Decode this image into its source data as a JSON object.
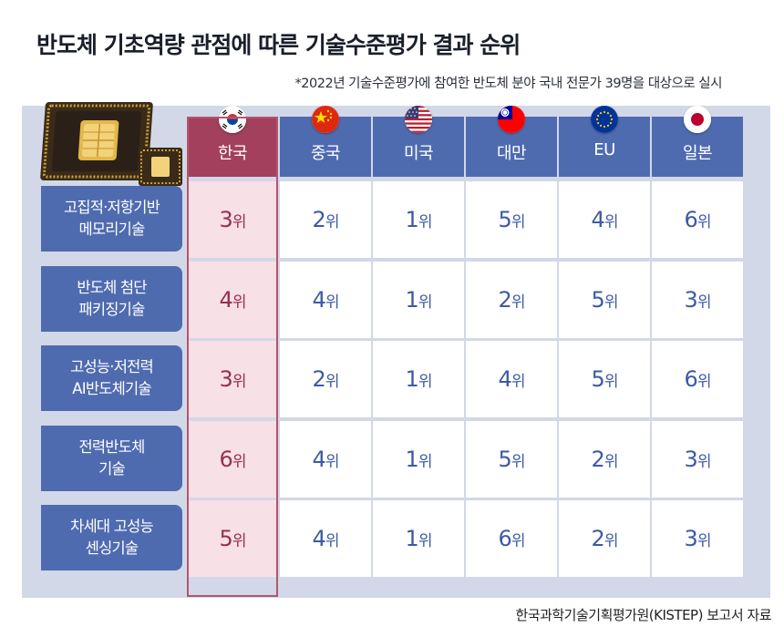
{
  "header": {
    "title": "반도체 기초역량 관점에 따른 기술수준평가 결과 순위",
    "subtitle": "*2022년 기술수준평가에 참여한 반도체 분야 국내 전문가 39명을 대상으로 실시",
    "source": "한국과학기술기획평가원(KISTEP) 보고서 자료"
  },
  "colors": {
    "header_blue": "#4f6bb0",
    "korea_header": "#a2405e",
    "korea_cell": "#f7e0e6",
    "korea_text": "#96304f",
    "rank_text": "#3e5aa5",
    "panel": "#d2d8e7"
  },
  "chart_data": {
    "type": "table",
    "columns": [
      "한국",
      "중국",
      "미국",
      "대만",
      "EU",
      "일본"
    ],
    "column_icons": [
      "korea-flag-icon",
      "china-flag-icon",
      "usa-flag-icon",
      "taiwan-flag-icon",
      "eu-flag-icon",
      "japan-flag-icon"
    ],
    "unit": "위",
    "rows": [
      {
        "label_lines": [
          "고집적·저항기반",
          "메모리기술"
        ],
        "values": [
          3,
          2,
          1,
          5,
          4,
          6
        ]
      },
      {
        "label_lines": [
          "반도체 첨단",
          "패키징기술"
        ],
        "values": [
          4,
          4,
          1,
          2,
          5,
          3
        ]
      },
      {
        "label_lines": [
          "고성능·저전력",
          "AI반도체기술"
        ],
        "values": [
          3,
          2,
          1,
          4,
          5,
          6
        ]
      },
      {
        "label_lines": [
          "전력반도체",
          "기술"
        ],
        "values": [
          6,
          4,
          1,
          5,
          2,
          3
        ]
      },
      {
        "label_lines": [
          "차세대 고성능",
          "센싱기술"
        ],
        "values": [
          5,
          4,
          1,
          6,
          2,
          3
        ]
      }
    ]
  }
}
